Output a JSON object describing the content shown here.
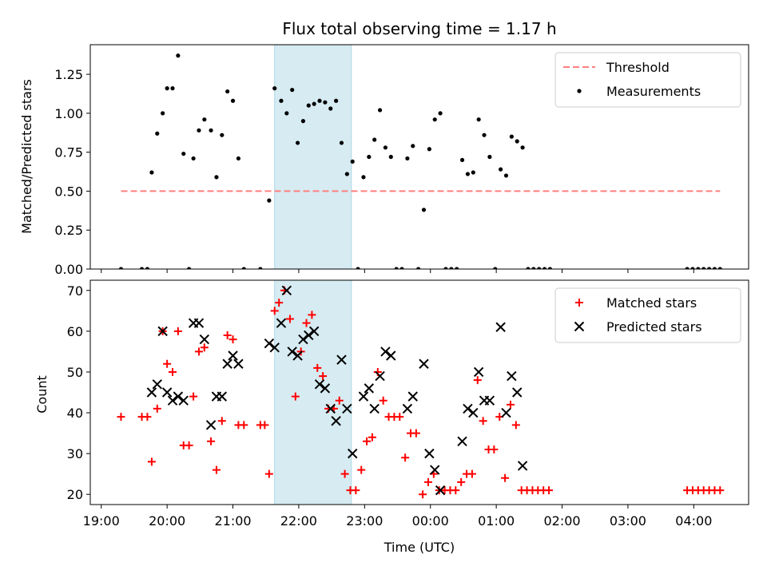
{
  "chart_data": [
    {
      "type": "scatter",
      "title": "Flux total observing time = 1.17 h",
      "xlabel": "",
      "ylabel": "Matched/Predicted stars",
      "ylim": [
        0,
        1.44
      ],
      "xlim": [
        "18:50",
        "04:50"
      ],
      "yticks": [
        0,
        0.25,
        0.5,
        0.75,
        1.0,
        1.25
      ],
      "ytick_labels": [
        "0.00",
        "0.25",
        "0.50",
        "0.75",
        "1.00",
        "1.25"
      ],
      "legend_position": "top-right",
      "shaded_interval": {
        "start": "21:38",
        "end": "22:48",
        "color": "#add8e6"
      },
      "series": [
        {
          "name": "Threshold",
          "kind": "dashed-line",
          "color": "#ff7f7f",
          "points": [
            [
              "19:18",
              0.5
            ],
            [
              "04:24",
              0.5
            ]
          ]
        },
        {
          "name": "Measurements",
          "kind": "scatter-dot",
          "color": "#000000",
          "points": [
            [
              "19:18",
              0.0
            ],
            [
              "19:37",
              0.0
            ],
            [
              "19:42",
              0.0
            ],
            [
              "19:46",
              0.62
            ],
            [
              "19:51",
              0.87
            ],
            [
              "19:56",
              1.0
            ],
            [
              "20:00",
              1.16
            ],
            [
              "20:05",
              1.16
            ],
            [
              "20:10",
              1.37
            ],
            [
              "20:15",
              0.74
            ],
            [
              "20:20",
              0.0
            ],
            [
              "20:24",
              0.71
            ],
            [
              "20:29",
              0.89
            ],
            [
              "20:34",
              0.96
            ],
            [
              "20:40",
              0.89
            ],
            [
              "20:45",
              0.59
            ],
            [
              "20:50",
              0.86
            ],
            [
              "20:55",
              1.14
            ],
            [
              "21:00",
              1.08
            ],
            [
              "21:05",
              0.71
            ],
            [
              "21:10",
              0.0
            ],
            [
              "21:25",
              0.0
            ],
            [
              "21:33",
              0.44
            ],
            [
              "21:38",
              1.16
            ],
            [
              "21:44",
              1.08
            ],
            [
              "21:49",
              1.0
            ],
            [
              "21:54",
              1.15
            ],
            [
              "21:59",
              0.81
            ],
            [
              "22:04",
              0.95
            ],
            [
              "22:09",
              1.05
            ],
            [
              "22:14",
              1.06
            ],
            [
              "22:19",
              1.08
            ],
            [
              "22:24",
              1.07
            ],
            [
              "22:29",
              1.03
            ],
            [
              "22:34",
              1.08
            ],
            [
              "22:39",
              0.81
            ],
            [
              "22:44",
              0.61
            ],
            [
              "22:49",
              0.69
            ],
            [
              "22:54",
              0.0
            ],
            [
              "22:59",
              0.59
            ],
            [
              "23:04",
              0.72
            ],
            [
              "23:09",
              0.83
            ],
            [
              "23:14",
              1.02
            ],
            [
              "23:19",
              0.78
            ],
            [
              "23:24",
              0.72
            ],
            [
              "23:29",
              0.0
            ],
            [
              "23:34",
              0.0
            ],
            [
              "23:39",
              0.71
            ],
            [
              "23:44",
              0.79
            ],
            [
              "23:49",
              0.0
            ],
            [
              "23:54",
              0.38
            ],
            [
              "23:59",
              0.77
            ],
            [
              "00:04",
              0.96
            ],
            [
              "00:09",
              1.0
            ],
            [
              "00:14",
              0.0
            ],
            [
              "00:19",
              0.0
            ],
            [
              "00:24",
              0.0
            ],
            [
              "00:29",
              0.7
            ],
            [
              "00:34",
              0.61
            ],
            [
              "00:39",
              0.62
            ],
            [
              "00:44",
              0.96
            ],
            [
              "00:49",
              0.86
            ],
            [
              "00:54",
              0.72
            ],
            [
              "00:59",
              0.0
            ],
            [
              "01:04",
              0.64
            ],
            [
              "01:09",
              0.6
            ],
            [
              "01:14",
              0.85
            ],
            [
              "01:19",
              0.82
            ],
            [
              "01:24",
              0.78
            ],
            [
              "01:29",
              0.0
            ],
            [
              "01:34",
              0.0
            ],
            [
              "01:39",
              0.0
            ],
            [
              "01:44",
              0.0
            ],
            [
              "01:49",
              0.0
            ],
            [
              "03:54",
              0.0
            ],
            [
              "03:59",
              0.0
            ],
            [
              "04:04",
              0.0
            ],
            [
              "04:09",
              0.0
            ],
            [
              "04:14",
              0.0
            ],
            [
              "04:19",
              0.0
            ],
            [
              "04:24",
              0.0
            ]
          ]
        }
      ]
    },
    {
      "type": "scatter",
      "title": "",
      "xlabel": "Time (UTC)",
      "ylabel": "Count",
      "ylim": [
        17.5,
        72.5
      ],
      "xlim": [
        "18:50",
        "04:50"
      ],
      "yticks": [
        20,
        30,
        40,
        50,
        60,
        70
      ],
      "ytick_labels": [
        "20",
        "30",
        "40",
        "50",
        "60",
        "70"
      ],
      "xticks": [
        "19:00",
        "20:00",
        "21:00",
        "22:00",
        "23:00",
        "00:00",
        "01:00",
        "02:00",
        "03:00",
        "04:00"
      ],
      "xtick_labels": [
        "19:00",
        "20:00",
        "21:00",
        "22:00",
        "23:00",
        "00:00",
        "01:00",
        "02:00",
        "03:00",
        "04:00"
      ],
      "legend_position": "top-right",
      "shaded_interval": {
        "start": "21:38",
        "end": "22:48",
        "color": "#add8e6"
      },
      "series": [
        {
          "name": "Matched stars",
          "kind": "plus",
          "color": "#ff0000",
          "points": [
            [
              "19:18",
              39
            ],
            [
              "19:37",
              39
            ],
            [
              "19:42",
              39
            ],
            [
              "19:46",
              28
            ],
            [
              "19:51",
              41
            ],
            [
              "19:56",
              60
            ],
            [
              "20:00",
              52
            ],
            [
              "20:05",
              50
            ],
            [
              "20:10",
              60
            ],
            [
              "20:15",
              32
            ],
            [
              "20:20",
              32
            ],
            [
              "20:24",
              44
            ],
            [
              "20:29",
              55
            ],
            [
              "20:34",
              56
            ],
            [
              "20:40",
              33
            ],
            [
              "20:45",
              26
            ],
            [
              "20:50",
              38
            ],
            [
              "20:55",
              59
            ],
            [
              "21:00",
              58
            ],
            [
              "21:05",
              37
            ],
            [
              "21:10",
              37
            ],
            [
              "21:25",
              37
            ],
            [
              "21:29",
              37
            ],
            [
              "21:33",
              25
            ],
            [
              "21:38",
              65
            ],
            [
              "21:42",
              67
            ],
            [
              "21:47",
              70
            ],
            [
              "21:52",
              63
            ],
            [
              "21:57",
              44
            ],
            [
              "22:02",
              55
            ],
            [
              "22:07",
              62
            ],
            [
              "22:12",
              64
            ],
            [
              "22:17",
              51
            ],
            [
              "22:22",
              49
            ],
            [
              "22:27",
              41
            ],
            [
              "22:32",
              41
            ],
            [
              "22:37",
              43
            ],
            [
              "22:42",
              25
            ],
            [
              "22:47",
              21
            ],
            [
              "22:52",
              21
            ],
            [
              "22:57",
              26
            ],
            [
              "23:02",
              33
            ],
            [
              "23:07",
              34
            ],
            [
              "23:12",
              50
            ],
            [
              "23:17",
              43
            ],
            [
              "23:22",
              39
            ],
            [
              "23:27",
              39
            ],
            [
              "23:32",
              39
            ],
            [
              "23:37",
              29
            ],
            [
              "23:42",
              35
            ],
            [
              "23:47",
              35
            ],
            [
              "23:53",
              20
            ],
            [
              "23:58",
              23
            ],
            [
              "00:03",
              25
            ],
            [
              "00:08",
              21
            ],
            [
              "00:13",
              21
            ],
            [
              "00:18",
              21
            ],
            [
              "00:23",
              21
            ],
            [
              "00:28",
              23
            ],
            [
              "00:33",
              25
            ],
            [
              "00:38",
              25
            ],
            [
              "00:43",
              48
            ],
            [
              "00:48",
              38
            ],
            [
              "00:53",
              31
            ],
            [
              "00:58",
              31
            ],
            [
              "01:03",
              39
            ],
            [
              "01:08",
              24
            ],
            [
              "01:13",
              42
            ],
            [
              "01:18",
              37
            ],
            [
              "01:23",
              21
            ],
            [
              "01:28",
              21
            ],
            [
              "01:33",
              21
            ],
            [
              "01:38",
              21
            ],
            [
              "01:43",
              21
            ],
            [
              "01:48",
              21
            ],
            [
              "03:54",
              21
            ],
            [
              "03:59",
              21
            ],
            [
              "04:04",
              21
            ],
            [
              "04:09",
              21
            ],
            [
              "04:14",
              21
            ],
            [
              "04:19",
              21
            ],
            [
              "04:24",
              21
            ]
          ]
        },
        {
          "name": "Predicted stars",
          "kind": "x",
          "color": "#000000",
          "points": [
            [
              "19:46",
              45
            ],
            [
              "19:51",
              47
            ],
            [
              "19:56",
              60
            ],
            [
              "20:00",
              45
            ],
            [
              "20:05",
              43
            ],
            [
              "20:10",
              44
            ],
            [
              "20:15",
              43
            ],
            [
              "20:24",
              62
            ],
            [
              "20:29",
              62
            ],
            [
              "20:34",
              58
            ],
            [
              "20:40",
              37
            ],
            [
              "20:45",
              44
            ],
            [
              "20:50",
              44
            ],
            [
              "20:55",
              52
            ],
            [
              "21:00",
              54
            ],
            [
              "21:05",
              52
            ],
            [
              "21:33",
              57
            ],
            [
              "21:38",
              56
            ],
            [
              "21:44",
              62
            ],
            [
              "21:49",
              70
            ],
            [
              "21:54",
              55
            ],
            [
              "21:59",
              54
            ],
            [
              "22:04",
              58
            ],
            [
              "22:09",
              59
            ],
            [
              "22:14",
              60
            ],
            [
              "22:19",
              47
            ],
            [
              "22:24",
              46
            ],
            [
              "22:29",
              41
            ],
            [
              "22:34",
              38
            ],
            [
              "22:39",
              53
            ],
            [
              "22:44",
              41
            ],
            [
              "22:49",
              30
            ],
            [
              "22:59",
              44
            ],
            [
              "23:04",
              46
            ],
            [
              "23:09",
              41
            ],
            [
              "23:14",
              49
            ],
            [
              "23:19",
              55
            ],
            [
              "23:24",
              54
            ],
            [
              "23:39",
              41
            ],
            [
              "23:44",
              44
            ],
            [
              "23:54",
              52
            ],
            [
              "23:59",
              30
            ],
            [
              "00:04",
              26
            ],
            [
              "00:09",
              21
            ],
            [
              "00:29",
              33
            ],
            [
              "00:34",
              41
            ],
            [
              "00:39",
              40
            ],
            [
              "00:44",
              50
            ],
            [
              "00:49",
              43
            ],
            [
              "00:54",
              43
            ],
            [
              "01:04",
              61
            ],
            [
              "01:09",
              40
            ],
            [
              "01:14",
              49
            ],
            [
              "01:19",
              45
            ],
            [
              "01:24",
              27
            ]
          ]
        }
      ]
    }
  ]
}
